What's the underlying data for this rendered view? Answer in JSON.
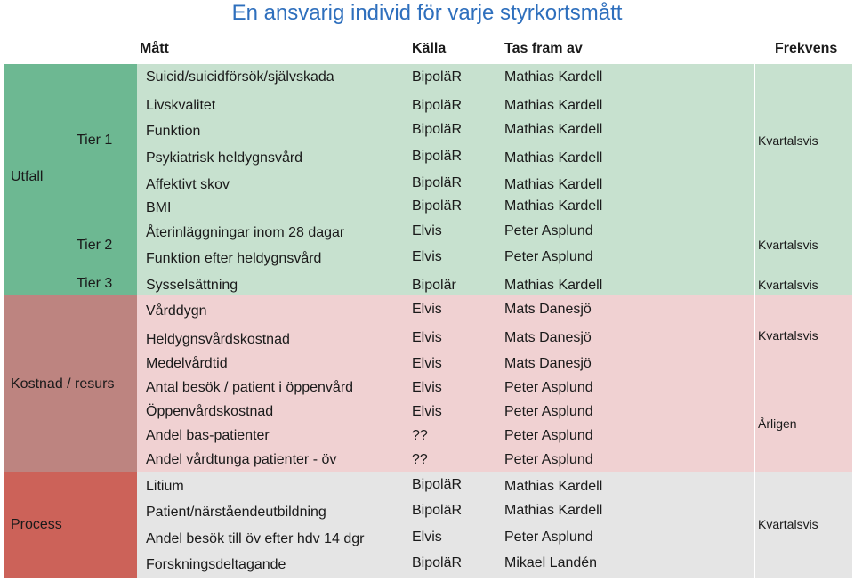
{
  "title": "En ansvarig individ för varje styrkortsmått",
  "headers": {
    "matt": "Mått",
    "kalla": "Källa",
    "tas_fram_av": "Tas fram av",
    "frekvens": "Frekvens"
  },
  "categories": {
    "utfall": "Utfall",
    "kostnad": "Kostnad / resurs",
    "process": "Process"
  },
  "tiers": {
    "tier1": "Tier 1",
    "tier2": "Tier 2",
    "tier3": "Tier 3"
  },
  "colors": {
    "title": "#2e6fbd",
    "utfall_cat": "#6db892",
    "utfall_row": "#c7e1cf",
    "kostnad_cat": "#bd8480",
    "kostnad_row": "#f0d1d2",
    "process_cat": "#cc6259",
    "process_row": "#e5e5e5"
  },
  "rows": [
    {
      "matt": "Suicid/suicidförsök/självskada",
      "kalla": "BipoläR",
      "tas": "Mathias Kardell"
    },
    {
      "matt": "Livskvalitet",
      "kalla": "BipoläR",
      "tas": "Mathias Kardell"
    },
    {
      "matt": "Funktion",
      "kalla": "BipoläR",
      "tas": "Mathias Kardell"
    },
    {
      "matt": "Psykiatrisk heldygnsvård",
      "kalla": "BipoläR",
      "tas": "Mathias Kardell"
    },
    {
      "matt": "Affektivt skov",
      "kalla": "BipoläR",
      "tas": "Mathias Kardell"
    },
    {
      "matt": "BMI",
      "kalla": "BipoläR",
      "tas": "Mathias Kardell"
    },
    {
      "matt": "Återinläggningar inom 28 dagar",
      "kalla": "Elvis",
      "tas": "Peter Asplund"
    },
    {
      "matt": "Funktion efter heldygnsvård",
      "kalla": "Elvis",
      "tas": "Peter Asplund"
    },
    {
      "matt": "Sysselsättning",
      "kalla": "Bipolär",
      "tas": "Mathias Kardell"
    },
    {
      "matt": "Vårddygn",
      "kalla": "Elvis",
      "tas": "Mats Danesjö"
    },
    {
      "matt": "Heldygnsvårdskostnad",
      "kalla": "Elvis",
      "tas": "Mats Danesjö"
    },
    {
      "matt": "Medelvårdtid",
      "kalla": "Elvis",
      "tas": "Mats Danesjö"
    },
    {
      "matt": "Antal besök / patient i öppenvård",
      "kalla": "Elvis",
      "tas": "Peter Asplund"
    },
    {
      "matt": "Öppenvårdskostnad",
      "kalla": "Elvis",
      "tas": "Peter Asplund"
    },
    {
      "matt": "Andel bas-patienter",
      "kalla": "??",
      "tas": "Peter Asplund"
    },
    {
      "matt": "Andel vårdtunga patienter - öv",
      "kalla": "??",
      "tas": "Peter Asplund"
    },
    {
      "matt": "Litium",
      "kalla": "BipoläR",
      "tas": "Mathias Kardell"
    },
    {
      "matt": "Patient/närståendeutbildning",
      "kalla": "BipoläR",
      "tas": "Mathias Kardell"
    },
    {
      "matt": "Andel besök till öv efter hdv 14 dgr",
      "kalla": "Elvis",
      "tas": "Peter Asplund"
    },
    {
      "matt": "Forskningsdeltagande",
      "kalla": "BipoläR",
      "tas": "Mikael Landén"
    }
  ],
  "frequencies": [
    {
      "text": "Kvartalsvis"
    },
    {
      "text": "Kvartalsvis"
    },
    {
      "text": "Kvartalsvis"
    },
    {
      "text": "Kvartalsvis"
    },
    {
      "text": "Årligen"
    },
    {
      "text": "Kvartalsvis"
    }
  ]
}
